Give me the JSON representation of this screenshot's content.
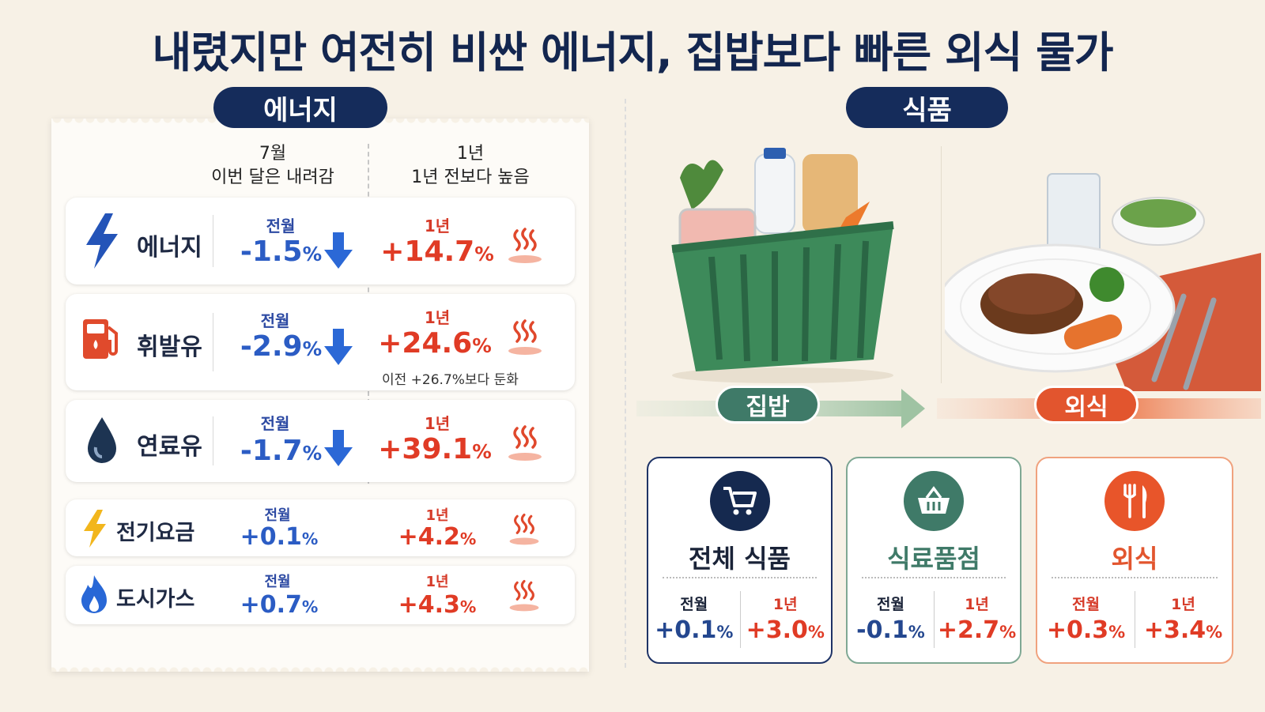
{
  "title": "내렸지만 여전히 비싼 에너지, 집밥보다 빠른 외식 물가",
  "colors": {
    "navy": "#152c5b",
    "blue": "#2b5cc4",
    "red": "#e03b25",
    "green": "#3f7a68",
    "orange": "#e2552e"
  },
  "energy": {
    "section_label": "에너지",
    "col_month": {
      "line1": "7월",
      "line2": "이번 달은 내려감"
    },
    "col_year": {
      "line1": "1년",
      "line2": "1년 전보다 높음"
    },
    "rows": [
      {
        "name": "에너지",
        "icon": "lightning-icon",
        "m_label": "전월",
        "m_value": "-1.5",
        "y_label": "1년",
        "y_value": "+14.7",
        "down_arrow": true
      },
      {
        "name": "휘발유",
        "icon": "fuel-pump-icon",
        "m_label": "전월",
        "m_value": "-2.9",
        "y_label": "1년",
        "y_value": "+24.6",
        "down_arrow": true,
        "note": "이전 +26.7%보다 둔화"
      },
      {
        "name": "연료유",
        "icon": "oil-drop-icon",
        "m_label": "전월",
        "m_value": "-1.7",
        "y_label": "1년",
        "y_value": "+39.1",
        "down_arrow": true
      },
      {
        "name": "전기요금",
        "icon": "electricity-bolt-icon",
        "m_label": "전월",
        "m_value": "+0.1",
        "y_label": "1년",
        "y_value": "+4.2",
        "down_arrow": false
      },
      {
        "name": "도시가스",
        "icon": "gas-flame-icon",
        "m_label": "전월",
        "m_value": "+0.7",
        "y_label": "1년",
        "y_value": "+4.3",
        "down_arrow": false
      }
    ],
    "pct_symbol": "%"
  },
  "food": {
    "section_label": "식품",
    "home_tag": "집밥",
    "dining_tag": "외식",
    "cards": [
      {
        "title": "전체 식품",
        "icon": "shopping-cart-icon",
        "m_label": "전월",
        "m_value": "+0.1",
        "y_label": "1년",
        "y_value": "+3.0"
      },
      {
        "title": "식료품점",
        "icon": "basket-icon",
        "m_label": "전월",
        "m_value": "-0.1",
        "y_label": "1년",
        "y_value": "+2.7"
      },
      {
        "title": "외식",
        "icon": "fork-knife-icon",
        "m_label": "전월",
        "m_value": "+0.3",
        "y_label": "1년",
        "y_value": "+3.4"
      }
    ]
  }
}
